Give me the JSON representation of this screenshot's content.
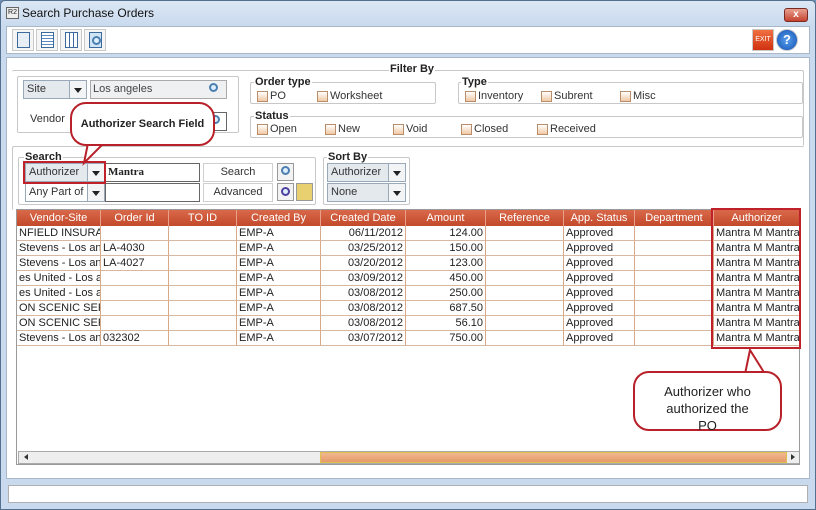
{
  "window": {
    "title": "Search Purchase Orders",
    "app_icon": "R2",
    "close_label": "x"
  },
  "toolbar": {
    "icons": [
      "new-window-icon",
      "document-icon",
      "spreadsheet-icon",
      "search-document-icon"
    ],
    "exit_label": "EXIT",
    "help_label": "?"
  },
  "filter": {
    "title": "Filter By",
    "site_select": "Site",
    "site_value": "Los angeles",
    "vendor_label": "Vendor",
    "order_type": {
      "label": "Order type",
      "options": [
        "PO",
        "Worksheet"
      ]
    },
    "type": {
      "label": "Type",
      "options": [
        "Inventory",
        "Subrent",
        "Misc"
      ]
    },
    "status": {
      "label": "Status",
      "options": [
        "Open",
        "New",
        "Void",
        "Closed",
        "Received"
      ]
    }
  },
  "search": {
    "label": "Search",
    "field_select": "Authorizer",
    "field_value": "Mantra",
    "match_select": "Any Part of ...",
    "match_value": "",
    "search_button": "Search",
    "advanced_button": "Advanced"
  },
  "sort": {
    "label": "Sort By",
    "primary": "Authorizer",
    "secondary": "None"
  },
  "table": {
    "columns": [
      "Vendor-Site",
      "Order Id",
      "TO ID",
      "Created By",
      "Created Date",
      "Amount",
      "Reference",
      "App. Status",
      "Department",
      "Authorizer"
    ],
    "rows": [
      [
        "NFIELD INSURA...",
        "",
        "",
        "EMP-A",
        "06/11/2012",
        "124.00",
        "",
        "Approved",
        "",
        "Mantra M Mantra"
      ],
      [
        "Stevens - Los an...",
        "LA-4030",
        "",
        "EMP-A",
        "03/25/2012",
        "150.00",
        "",
        "Approved",
        "",
        "Mantra M Mantra"
      ],
      [
        "Stevens - Los an...",
        "LA-4027",
        "",
        "EMP-A",
        "03/20/2012",
        "123.00",
        "",
        "Approved",
        "",
        "Mantra M Mantra"
      ],
      [
        "es United - Los a...",
        "",
        "",
        "EMP-A",
        "03/09/2012",
        "450.00",
        "",
        "Approved",
        "",
        "Mantra M Mantra"
      ],
      [
        "es United - Los a...",
        "",
        "",
        "EMP-A",
        "03/08/2012",
        "250.00",
        "",
        "Approved",
        "",
        "Mantra M Mantra"
      ],
      [
        "ON SCENIC SER...",
        "",
        "",
        "EMP-A",
        "03/08/2012",
        "687.50",
        "",
        "Approved",
        "",
        "Mantra M Mantra"
      ],
      [
        "ON SCENIC SER...",
        "",
        "",
        "EMP-A",
        "03/08/2012",
        "56.10",
        "",
        "Approved",
        "",
        "Mantra M Mantra"
      ],
      [
        "Stevens - Los an...",
        "032302",
        "",
        "EMP-A",
        "03/07/2012",
        "750.00",
        "",
        "Approved",
        "",
        "Mantra M Mantra"
      ]
    ]
  },
  "annotations": {
    "search_field": "Authorizer Search Field",
    "authorizer_column": "Authorizer who authorized the PO"
  },
  "colors": {
    "header": "#c24a2a",
    "annotation": "#b8202a",
    "scroll_thumb": "#e59a6a"
  }
}
